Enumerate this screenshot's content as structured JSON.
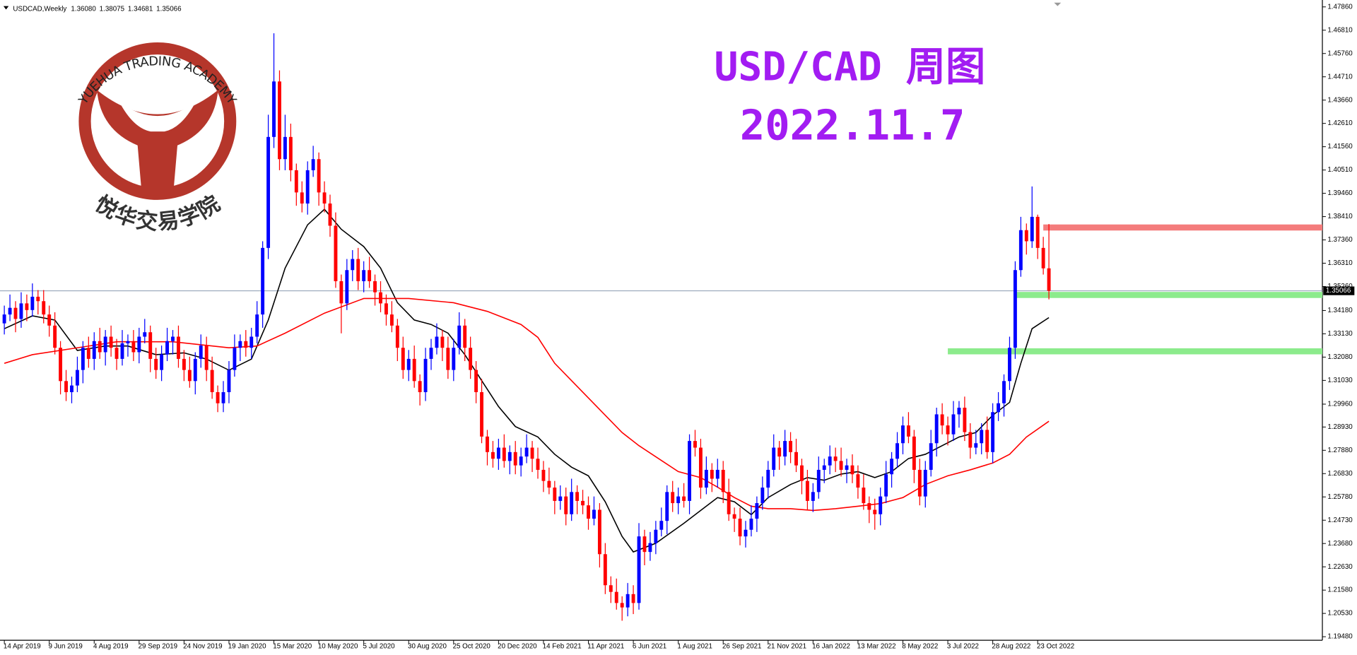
{
  "logo": {
    "arc_text": "YUEHUA TRADING ACADEMY",
    "cn_text": "悦华交易学院"
  },
  "chart_data": {
    "type": "candlestick",
    "title": "USD/CAD 周图",
    "subtitle": "2022.11.7",
    "symbol": "USDCAD,Weekly",
    "ohlc_labels": [
      "1.36080",
      "1.38075",
      "1.34681",
      "1.35066"
    ],
    "categories": [
      "14 Apr 2019",
      null,
      null,
      null,
      null,
      null,
      null,
      null,
      "9 Jun 2019",
      null,
      null,
      null,
      null,
      null,
      null,
      null,
      "4 Aug 2019",
      null,
      null,
      null,
      null,
      null,
      null,
      null,
      "29 Sep 2019",
      null,
      null,
      null,
      null,
      null,
      null,
      null,
      "24 Nov 2019",
      null,
      null,
      null,
      null,
      null,
      null,
      null,
      "19 Jan 2020",
      null,
      null,
      null,
      null,
      null,
      null,
      null,
      "15 Mar 2020",
      null,
      null,
      null,
      null,
      null,
      null,
      null,
      "10 May 2020",
      null,
      null,
      null,
      null,
      null,
      null,
      null,
      "5 Jul 2020",
      null,
      null,
      null,
      null,
      null,
      null,
      null,
      "30 Aug 2020",
      null,
      null,
      null,
      null,
      null,
      null,
      null,
      "25 Oct 2020",
      null,
      null,
      null,
      null,
      null,
      null,
      null,
      "20 Dec 2020",
      null,
      null,
      null,
      null,
      null,
      null,
      null,
      "14 Feb 2021",
      null,
      null,
      null,
      null,
      null,
      null,
      null,
      "11 Apr 2021",
      null,
      null,
      null,
      null,
      null,
      null,
      null,
      "6 Jun 2021",
      null,
      null,
      null,
      null,
      null,
      null,
      null,
      "1 Aug 2021",
      null,
      null,
      null,
      null,
      null,
      null,
      null,
      "26 Sep 2021",
      null,
      null,
      null,
      null,
      null,
      null,
      null,
      "21 Nov 2021",
      null,
      null,
      null,
      null,
      null,
      null,
      null,
      "16 Jan 2022",
      null,
      null,
      null,
      null,
      null,
      null,
      null,
      "13 Mar 2022",
      null,
      null,
      null,
      null,
      null,
      null,
      null,
      "8 May 2022",
      null,
      null,
      null,
      null,
      null,
      null,
      null,
      "3 Jul 2022",
      null,
      null,
      null,
      null,
      null,
      null,
      null,
      "28 Aug 2022",
      null,
      null,
      null,
      null,
      null,
      null,
      null,
      "23 Oct 2022",
      null,
      null
    ],
    "open": [
      1.336,
      1.34,
      1.343,
      1.338,
      1.345,
      1.342,
      1.348,
      1.346,
      1.34,
      1.335,
      1.325,
      1.31,
      1.305,
      1.308,
      1.315,
      1.325,
      1.32,
      1.328,
      1.323,
      1.33,
      1.325,
      1.32,
      1.327,
      1.328,
      1.323,
      1.33,
      1.332,
      1.32,
      1.315,
      1.322,
      1.328,
      1.33,
      1.32,
      1.315,
      1.31,
      1.32,
      1.326,
      1.315,
      1.305,
      1.3,
      1.305,
      1.315,
      1.325,
      1.328,
      1.325,
      1.33,
      1.34,
      1.37,
      1.42,
      1.445,
      1.41,
      1.42,
      1.405,
      1.395,
      1.39,
      1.405,
      1.41,
      1.395,
      1.39,
      1.38,
      1.355,
      1.345,
      1.36,
      1.365,
      1.355,
      1.36,
      1.355,
      1.35,
      1.345,
      1.34,
      1.335,
      1.325,
      1.315,
      1.32,
      1.31,
      1.305,
      1.32,
      1.325,
      1.33,
      1.325,
      1.315,
      1.325,
      1.335,
      1.325,
      1.315,
      1.305,
      1.285,
      1.278,
      1.275,
      1.28,
      1.274,
      1.278,
      1.272,
      1.276,
      1.28,
      1.275,
      1.27,
      1.265,
      1.262,
      1.256,
      1.258,
      1.25,
      1.26,
      1.256,
      1.254,
      1.248,
      1.252,
      1.232,
      1.218,
      1.215,
      1.21,
      1.208,
      1.214,
      1.21,
      1.24,
      1.233,
      1.237,
      1.243,
      1.247,
      1.26,
      1.255,
      1.258,
      1.256,
      1.283,
      1.28,
      1.262,
      1.27,
      1.266,
      1.27,
      1.26,
      1.25,
      1.248,
      1.24,
      1.243,
      1.248,
      1.255,
      1.262,
      1.27,
      1.28,
      1.276,
      1.283,
      1.278,
      1.272,
      1.265,
      1.256,
      1.26,
      1.27,
      1.272,
      1.276,
      1.274,
      1.27,
      1.272,
      1.268,
      1.262,
      1.255,
      1.252,
      1.25,
      1.258,
      1.268,
      1.275,
      1.282,
      1.29,
      1.285,
      1.27,
      1.258,
      1.27,
      1.282,
      1.295,
      1.29,
      1.286,
      1.295,
      1.298,
      1.287,
      1.28,
      1.282,
      1.288,
      1.278,
      1.296,
      1.3,
      1.31,
      1.325,
      1.36,
      1.378,
      1.373,
      1.384,
      1.37,
      1.3608
    ],
    "high": [
      1.344,
      1.349,
      1.346,
      1.35,
      1.349,
      1.354,
      1.351,
      1.351,
      1.344,
      1.341,
      1.328,
      1.315,
      1.312,
      1.321,
      1.328,
      1.33,
      1.332,
      1.334,
      1.333,
      1.335,
      1.329,
      1.333,
      1.331,
      1.333,
      1.334,
      1.338,
      1.335,
      1.325,
      1.326,
      1.334,
      1.333,
      1.335,
      1.324,
      1.321,
      1.323,
      1.331,
      1.33,
      1.321,
      1.308,
      1.31,
      1.319,
      1.331,
      1.331,
      1.333,
      1.334,
      1.346,
      1.373,
      1.43,
      1.4667,
      1.45,
      1.43,
      1.426,
      1.408,
      1.4,
      1.409,
      1.416,
      1.413,
      1.4,
      1.394,
      1.386,
      1.358,
      1.365,
      1.369,
      1.37,
      1.364,
      1.366,
      1.358,
      1.355,
      1.349,
      1.346,
      1.338,
      1.33,
      1.324,
      1.326,
      1.313,
      1.325,
      1.329,
      1.336,
      1.333,
      1.33,
      1.329,
      1.341,
      1.338,
      1.33,
      1.319,
      1.311,
      1.288,
      1.283,
      1.284,
      1.286,
      1.281,
      1.283,
      1.28,
      1.286,
      1.283,
      1.28,
      1.274,
      1.271,
      1.265,
      1.263,
      1.262,
      1.266,
      1.263,
      1.261,
      1.258,
      1.258,
      1.255,
      1.237,
      1.222,
      1.221,
      1.213,
      1.219,
      1.218,
      1.246,
      1.243,
      1.242,
      1.247,
      1.253,
      1.263,
      1.265,
      1.262,
      1.264,
      1.286,
      1.288,
      1.284,
      1.276,
      1.273,
      1.275,
      1.274,
      1.266,
      1.253,
      1.253,
      1.247,
      1.254,
      1.258,
      1.267,
      1.274,
      1.286,
      1.283,
      1.288,
      1.287,
      1.284,
      1.275,
      1.27,
      1.264,
      1.276,
      1.275,
      1.281,
      1.28,
      1.28,
      1.275,
      1.277,
      1.272,
      1.268,
      1.258,
      1.257,
      1.262,
      1.274,
      1.278,
      1.287,
      1.294,
      1.296,
      1.288,
      1.275,
      1.274,
      1.288,
      1.298,
      1.3,
      1.294,
      1.301,
      1.301,
      1.303,
      1.291,
      1.288,
      1.291,
      1.294,
      1.3,
      1.305,
      1.313,
      1.33,
      1.364,
      1.384,
      1.381,
      1.3977,
      1.385,
      1.375,
      1.38075
    ],
    "low": [
      1.331,
      1.337,
      1.332,
      1.334,
      1.337,
      1.339,
      1.34,
      1.336,
      1.33,
      1.322,
      1.304,
      1.301,
      1.3,
      1.305,
      1.309,
      1.316,
      1.315,
      1.32,
      1.317,
      1.321,
      1.315,
      1.317,
      1.321,
      1.319,
      1.318,
      1.327,
      1.314,
      1.311,
      1.31,
      1.319,
      1.322,
      1.316,
      1.31,
      1.307,
      1.304,
      1.316,
      1.31,
      1.302,
      1.296,
      1.296,
      1.3,
      1.312,
      1.319,
      1.321,
      1.32,
      1.327,
      1.334,
      1.365,
      1.415,
      1.405,
      1.405,
      1.4,
      1.389,
      1.386,
      1.385,
      1.402,
      1.389,
      1.386,
      1.375,
      1.352,
      1.3315,
      1.342,
      1.355,
      1.351,
      1.35,
      1.352,
      1.344,
      1.341,
      1.335,
      1.332,
      1.319,
      1.311,
      1.31,
      1.307,
      1.299,
      1.301,
      1.315,
      1.322,
      1.319,
      1.311,
      1.31,
      1.322,
      1.319,
      1.311,
      1.3,
      1.282,
      1.272,
      1.271,
      1.27,
      1.271,
      1.268,
      1.268,
      1.267,
      1.273,
      1.269,
      1.266,
      1.26,
      1.259,
      1.25,
      1.252,
      1.245,
      1.247,
      1.25,
      1.25,
      1.243,
      1.245,
      1.226,
      1.214,
      1.21,
      1.207,
      1.202,
      1.204,
      1.205,
      1.207,
      1.227,
      1.229,
      1.232,
      1.24,
      1.241,
      1.251,
      1.25,
      1.253,
      1.25,
      1.276,
      1.257,
      1.259,
      1.26,
      1.262,
      1.255,
      1.247,
      1.242,
      1.236,
      1.235,
      1.24,
      1.242,
      1.252,
      1.257,
      1.267,
      1.27,
      1.272,
      1.273,
      1.269,
      1.259,
      1.252,
      1.251,
      1.257,
      1.264,
      1.268,
      1.269,
      1.267,
      1.264,
      1.264,
      1.257,
      1.252,
      1.246,
      1.243,
      1.245,
      1.255,
      1.262,
      1.271,
      1.277,
      1.282,
      1.264,
      1.254,
      1.253,
      1.267,
      1.276,
      1.286,
      1.281,
      1.283,
      1.289,
      1.283,
      1.275,
      1.277,
      1.277,
      1.275,
      1.273,
      1.292,
      1.294,
      1.306,
      1.32,
      1.357,
      1.367,
      1.37,
      1.365,
      1.358,
      1.34681
    ],
    "close": [
      1.34,
      1.343,
      1.338,
      1.345,
      1.342,
      1.348,
      1.346,
      1.34,
      1.335,
      1.325,
      1.31,
      1.305,
      1.308,
      1.315,
      1.325,
      1.32,
      1.328,
      1.323,
      1.33,
      1.325,
      1.32,
      1.327,
      1.328,
      1.323,
      1.33,
      1.332,
      1.32,
      1.315,
      1.322,
      1.328,
      1.33,
      1.32,
      1.315,
      1.31,
      1.32,
      1.326,
      1.315,
      1.305,
      1.3,
      1.305,
      1.315,
      1.325,
      1.328,
      1.325,
      1.33,
      1.34,
      1.37,
      1.42,
      1.445,
      1.41,
      1.42,
      1.405,
      1.395,
      1.39,
      1.405,
      1.41,
      1.395,
      1.39,
      1.38,
      1.355,
      1.345,
      1.36,
      1.365,
      1.355,
      1.36,
      1.355,
      1.35,
      1.345,
      1.34,
      1.335,
      1.325,
      1.315,
      1.32,
      1.31,
      1.305,
      1.32,
      1.325,
      1.33,
      1.325,
      1.315,
      1.325,
      1.335,
      1.325,
      1.315,
      1.305,
      1.285,
      1.278,
      1.275,
      1.28,
      1.274,
      1.278,
      1.272,
      1.276,
      1.28,
      1.275,
      1.27,
      1.265,
      1.262,
      1.256,
      1.258,
      1.25,
      1.26,
      1.256,
      1.254,
      1.248,
      1.252,
      1.232,
      1.218,
      1.215,
      1.21,
      1.208,
      1.214,
      1.21,
      1.24,
      1.233,
      1.237,
      1.243,
      1.247,
      1.26,
      1.255,
      1.258,
      1.256,
      1.283,
      1.28,
      1.262,
      1.27,
      1.266,
      1.27,
      1.26,
      1.25,
      1.248,
      1.24,
      1.243,
      1.248,
      1.255,
      1.262,
      1.27,
      1.28,
      1.276,
      1.283,
      1.278,
      1.272,
      1.265,
      1.256,
      1.26,
      1.27,
      1.272,
      1.276,
      1.274,
      1.27,
      1.272,
      1.268,
      1.262,
      1.255,
      1.252,
      1.25,
      1.258,
      1.268,
      1.275,
      1.282,
      1.29,
      1.285,
      1.27,
      1.258,
      1.27,
      1.282,
      1.295,
      1.29,
      1.286,
      1.295,
      1.298,
      1.287,
      1.28,
      1.282,
      1.288,
      1.278,
      1.296,
      1.3,
      1.31,
      1.325,
      1.36,
      1.378,
      1.373,
      1.384,
      1.37,
      1.3608,
      1.35066
    ],
    "up_color": "#0000ff",
    "down_color": "#ff0000",
    "ylim": [
      1.1932,
      1.4817
    ],
    "yticks": [
      {
        "value": 1.4786,
        "label": "1.47860"
      },
      {
        "value": 1.4681,
        "label": "1.46810"
      },
      {
        "value": 1.4576,
        "label": "1.45760"
      },
      {
        "value": 1.4471,
        "label": "1.44710"
      },
      {
        "value": 1.4366,
        "label": "1.43660"
      },
      {
        "value": 1.4261,
        "label": "1.42610"
      },
      {
        "value": 1.4156,
        "label": "1.41560"
      },
      {
        "value": 1.4051,
        "label": "1.40510"
      },
      {
        "value": 1.3946,
        "label": "1.39460"
      },
      {
        "value": 1.3841,
        "label": "1.38410"
      },
      {
        "value": 1.3736,
        "label": "1.37360"
      },
      {
        "value": 1.3631,
        "label": "1.36310"
      },
      {
        "value": 1.3526,
        "label": "1.35260"
      },
      {
        "value": 1.3418,
        "label": "1.34180"
      },
      {
        "value": 1.3313,
        "label": "1.33130"
      },
      {
        "value": 1.3208,
        "label": "1.32080"
      },
      {
        "value": 1.3103,
        "label": "1.31030"
      },
      {
        "value": 1.2996,
        "label": "1.29960"
      },
      {
        "value": 1.2893,
        "label": "1.28930"
      },
      {
        "value": 1.2788,
        "label": "1.27880"
      },
      {
        "value": 1.2683,
        "label": "1.26830"
      },
      {
        "value": 1.2578,
        "label": "1.25780"
      },
      {
        "value": 1.2473,
        "label": "1.24730"
      },
      {
        "value": 1.2368,
        "label": "1.23680"
      },
      {
        "value": 1.2263,
        "label": "1.22630"
      },
      {
        "value": 1.2158,
        "label": "1.21580"
      },
      {
        "value": 1.2053,
        "label": "1.20530"
      },
      {
        "value": 1.1948,
        "label": "1.19480"
      }
    ],
    "lines": [
      {
        "color": "#000000",
        "x": [
          0,
          5,
          9,
          13,
          18,
          22,
          27,
          32,
          36,
          40,
          44,
          47,
          50,
          54,
          57,
          60,
          64,
          67,
          70,
          73,
          76,
          79,
          82,
          86,
          88,
          91,
          95,
          98,
          101,
          104,
          107,
          110,
          112,
          116,
          121,
          124,
          127,
          130,
          133,
          136,
          140,
          143,
          146,
          149,
          152,
          155,
          158,
          161,
          164,
          167,
          170,
          173,
          176,
          179,
          181,
          183,
          186
        ],
        "values": [
          1.3336,
          1.3394,
          1.3375,
          1.3238,
          1.3258,
          1.3258,
          1.3219,
          1.3227,
          1.3199,
          1.3149,
          1.3199,
          1.3375,
          1.3609,
          1.3804,
          1.3874,
          1.3784,
          1.3706,
          1.3609,
          1.3453,
          1.3375,
          1.3355,
          1.3316,
          1.3219,
          1.3063,
          1.2985,
          1.2895,
          1.2848,
          1.277,
          1.2712,
          1.2673,
          1.2556,
          1.24,
          1.233,
          1.2369,
          1.2459,
          1.2517,
          1.2575,
          1.2556,
          1.2498,
          1.2575,
          1.2634,
          1.2665,
          1.2653,
          1.2681,
          1.2692,
          1.2665,
          1.2692,
          1.2751,
          1.277,
          1.2809,
          1.2848,
          1.2868,
          1.2946,
          1.3004,
          1.318,
          1.3336,
          1.3386
        ]
      },
      {
        "color": "#ff0000",
        "x": [
          0,
          5,
          20,
          30,
          40,
          45,
          50,
          57,
          64,
          72,
          80,
          86,
          92,
          95,
          98,
          101,
          104,
          107,
          110,
          113,
          116,
          120,
          124,
          127,
          130,
          133,
          136,
          140,
          144,
          148,
          152,
          156,
          160,
          164,
          168,
          172,
          176,
          179,
          182,
          186
        ],
        "values": [
          1.318,
          1.3219,
          1.3277,
          1.3277,
          1.325,
          1.3258,
          1.3316,
          1.3406,
          1.3472,
          1.3472,
          1.3453,
          1.3414,
          1.3355,
          1.3297,
          1.318,
          1.3102,
          1.3024,
          1.2946,
          1.2868,
          1.2809,
          1.2759,
          1.2692,
          1.2665,
          1.2622,
          1.2575,
          1.2536,
          1.2525,
          1.2525,
          1.2517,
          1.2525,
          1.2536,
          1.2548,
          1.2575,
          1.2634,
          1.2673,
          1.27,
          1.2731,
          1.277,
          1.2848,
          1.2919
        ]
      }
    ],
    "levels": [
      {
        "value": 1.3792,
        "start": 185,
        "color": "#f47c7c"
      },
      {
        "value": 1.3488,
        "start": 180,
        "color": "#8ceb8c"
      },
      {
        "value": 1.3234,
        "start": 168,
        "color": "#8ceb8c"
      }
    ],
    "current_price": {
      "value": 1.35066,
      "label": "1.35066"
    }
  }
}
